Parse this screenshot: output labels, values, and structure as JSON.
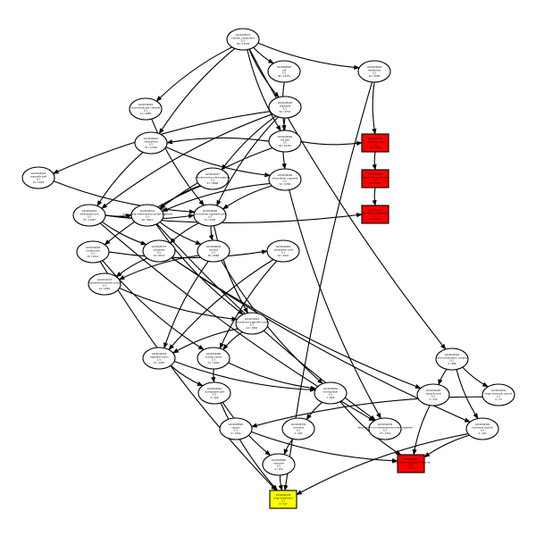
{
  "graph": {
    "nodes": [
      {
        "id": "n1",
        "shape": "ellipse",
        "fill": "#ffffff",
        "lines": [
          "GO:0005575",
          "cellular_component",
          "1/1",
          "56 / 13178"
        ]
      },
      {
        "id": "n2",
        "shape": "ellipse",
        "fill": "#ffffff",
        "lines": [
          "GO:0005623",
          "cell",
          "1/1",
          "56 / 13151"
        ]
      },
      {
        "id": "n3",
        "shape": "ellipse",
        "fill": "#ffffff",
        "lines": [
          "GO:0016020",
          "membrane",
          "1/1",
          "44 / 6093"
        ]
      },
      {
        "id": "n4",
        "shape": "ellipse",
        "fill": "#ffffff",
        "lines": [
          "GO:0032991",
          "macromolecular complex",
          "1/1",
          "14 / 2885"
        ]
      },
      {
        "id": "n5",
        "shape": "ellipse",
        "fill": "#ffffff",
        "lines": [
          "GO:0043226",
          "organelle",
          "1/1",
          "51 / 9733"
        ]
      },
      {
        "id": "n6",
        "shape": "ellipse",
        "fill": "#ffffff",
        "lines": [
          "GO:0005622",
          "intracellular",
          "1/1",
          "53 / 11302"
        ]
      },
      {
        "id": "n7",
        "shape": "ellipse",
        "fill": "#ffffff",
        "lines": [
          "GO:0044464",
          "cell part",
          "1/1",
          "56 / 13151"
        ]
      },
      {
        "id": "n8",
        "shape": "rect",
        "fill": "#ff0000",
        "lines": [
          "GO:0044425",
          "membrane part",
          "1/1",
          "35 / 4563"
        ]
      },
      {
        "id": "n9",
        "shape": "ellipse",
        "fill": "#ffffff",
        "lines": [
          "GO:0043229",
          "intracellular organelle",
          "1/1",
          "51 / 9709"
        ]
      },
      {
        "id": "n10",
        "shape": "ellipse",
        "fill": "#ffffff",
        "lines": [
          "GO:0044422",
          "organelle part",
          "1/1",
          "31 / 5493"
        ]
      },
      {
        "id": "n11",
        "shape": "ellipse",
        "fill": "#ffffff",
        "lines": [
          "GO:0043227",
          "membrane-bounded organelle",
          "1/1",
          "47 / 8848"
        ]
      },
      {
        "id": "n12",
        "shape": "ellipse",
        "fill": "#ffffff",
        "lines": [
          "GO:0044424",
          "intracellular part",
          "1/1",
          "53 / 11087"
        ]
      },
      {
        "id": "n13",
        "shape": "rect",
        "fill": "#ff0000",
        "lines": [
          "GO:0016021",
          "integral to membrane",
          "1/1",
          "34 / 3850"
        ]
      },
      {
        "id": "n14",
        "shape": "rect",
        "fill": "#ff0000",
        "lines": [
          "GO:0031224",
          "intrinsic to membrane",
          "1/1",
          "34 / 3950"
        ]
      },
      {
        "id": "n15",
        "shape": "ellipse",
        "fill": "#ffffff",
        "lines": [
          "GO:0043231",
          "intracellular membrane-bounded organelle",
          "1/1",
          "46 / 8811"
        ]
      },
      {
        "id": "n16",
        "shape": "ellipse",
        "fill": "#ffffff",
        "lines": [
          "GO:0044446",
          "intracellular organelle part",
          "1/1",
          "31 / 5405"
        ]
      },
      {
        "id": "n17",
        "shape": "ellipse",
        "fill": "#ffffff",
        "lines": [
          "GO:0044428",
          "nuclear part",
          "1/1",
          "19 / 2212"
        ]
      },
      {
        "id": "n18",
        "shape": "ellipse",
        "fill": "#ffffff",
        "lines": [
          "GO:0005737",
          "cytoplasm",
          "1/1",
          "34 / 6513"
        ]
      },
      {
        "id": "n19",
        "shape": "ellipse",
        "fill": "#ffffff",
        "lines": [
          "GO:0005634",
          "nucleus",
          "1/1",
          "30 / 4969"
        ]
      },
      {
        "id": "n20",
        "shape": "ellipse",
        "fill": "#ffffff",
        "lines": [
          "GO:0044444",
          "cytoplasmic part",
          "1/1",
          "19 / 4022"
        ]
      },
      {
        "id": "n21",
        "shape": "ellipse",
        "fill": "#ffffff",
        "lines": [
          "GO:0031974",
          "membrane-enclosed lumen",
          "1/1",
          "14 / 1881"
        ]
      },
      {
        "id": "n22",
        "shape": "ellipse",
        "fill": "#ffffff",
        "lines": [
          "GO:0070013",
          "intracellular organelle lumen",
          "1/1",
          "14 / 1863"
        ]
      },
      {
        "id": "n23",
        "shape": "ellipse",
        "fill": "#ffffff",
        "lines": [
          "GO:0043233",
          "organelle lumen",
          "1/1",
          "14 / 1863"
        ]
      },
      {
        "id": "n24",
        "shape": "ellipse",
        "fill": "#ffffff",
        "lines": [
          "GO:0031981",
          "nuclear lumen",
          "1/1",
          "13 / 1643"
        ]
      },
      {
        "id": "n25",
        "shape": "ellipse",
        "fill": "#ffffff",
        "lines": [
          "GO:0044451",
          "nucleoplasm part",
          "1/1",
          "6 / 469"
        ]
      },
      {
        "id": "n26",
        "shape": "ellipse",
        "fill": "#ffffff",
        "lines": [
          "GO:0005654",
          "nucleoplasm",
          "1/1",
          "7 / 806"
        ]
      },
      {
        "id": "n27",
        "shape": "ellipse",
        "fill": "#ffffff",
        "lines": [
          "GO:0005730",
          "nucleolus",
          "1/1",
          "2 / 402"
        ]
      },
      {
        "id": "n28",
        "shape": "ellipse",
        "fill": "#ffffff",
        "lines": [
          "GO:0005840",
          "ribosome",
          "1/1",
          "2 / 194"
        ]
      },
      {
        "id": "n29",
        "shape": "ellipse",
        "fill": "#ffffff",
        "lines": [
          "GO:0030529",
          "ribonucleoprotein complex",
          "1/1",
          "3 / 686"
        ]
      },
      {
        "id": "n30",
        "shape": "rect",
        "fill": "#ff0000",
        "lines": [
          "GO:0022625",
          "cytosolic large ribosomal subunit",
          "1/1",
          "2 / 60"
        ]
      },
      {
        "id": "n31",
        "shape": "ellipse",
        "fill": "#ffffff",
        "lines": [
          "GO:0044445",
          "cytosolic part",
          "1/1",
          "2 / 153"
        ]
      },
      {
        "id": "n32",
        "shape": "ellipse",
        "fill": "#ffffff",
        "lines": [
          "GO:0015934",
          "large ribosomal subunit",
          "1/1",
          "2 / 73"
        ]
      },
      {
        "id": "n33",
        "shape": "ellipse",
        "fill": "#ffffff",
        "lines": [
          "GO:0044391",
          "ribosomal subunit",
          "1/1",
          "2 / 101"
        ]
      },
      {
        "id": "n34",
        "shape": "ellipse",
        "fill": "#ffffff",
        "lines": [
          "GO:0043232",
          "intracellular non-membrane-bounded organelle",
          "1/1",
          "13 / 2710"
        ]
      },
      {
        "id": "n35",
        "shape": "ellipse",
        "fill": "#ffffff",
        "lines": [
          "GO:0005829",
          "cytosol",
          "1/1",
          "3 / 1059"
        ]
      },
      {
        "id": "n36",
        "shape": "rect",
        "fill": "#ffff00",
        "lines": [
          "GO:0000139",
          "Golgi membrane",
          "1/1",
          "4 / 317"
        ]
      }
    ],
    "edges": [
      [
        "n1",
        "n2"
      ],
      [
        "n1",
        "n3"
      ],
      [
        "n1",
        "n4"
      ],
      [
        "n1",
        "n5"
      ],
      [
        "n1",
        "n6"
      ],
      [
        "n1",
        "n7"
      ],
      [
        "n1",
        "n29"
      ],
      [
        "n2",
        "n7"
      ],
      [
        "n7",
        "n6"
      ],
      [
        "n7",
        "n8"
      ],
      [
        "n3",
        "n8"
      ],
      [
        "n3",
        "n36"
      ],
      [
        "n8",
        "n13"
      ],
      [
        "n13",
        "n14"
      ],
      [
        "n5",
        "n9"
      ],
      [
        "n5",
        "n10"
      ],
      [
        "n5",
        "n11"
      ],
      [
        "n5",
        "n16"
      ],
      [
        "n5",
        "n12"
      ],
      [
        "n4",
        "n16"
      ],
      [
        "n6",
        "n12"
      ],
      [
        "n6",
        "n9"
      ],
      [
        "n12",
        "n14"
      ],
      [
        "n7",
        "n15"
      ],
      [
        "n9",
        "n15"
      ],
      [
        "n9",
        "n16"
      ],
      [
        "n9",
        "n34"
      ],
      [
        "n10",
        "n16"
      ],
      [
        "n11",
        "n15"
      ],
      [
        "n11",
        "n17"
      ],
      [
        "n12",
        "n18"
      ],
      [
        "n12",
        "n15"
      ],
      [
        "n12",
        "n16"
      ],
      [
        "n12",
        "n34"
      ],
      [
        "n15",
        "n19"
      ],
      [
        "n15",
        "n22"
      ],
      [
        "n15",
        "n34"
      ],
      [
        "n16",
        "n18"
      ],
      [
        "n16",
        "n19"
      ],
      [
        "n16",
        "n22"
      ],
      [
        "n17",
        "n20"
      ],
      [
        "n17",
        "n24"
      ],
      [
        "n17",
        "n36"
      ],
      [
        "n18",
        "n21"
      ],
      [
        "n18",
        "n31"
      ],
      [
        "n18",
        "n33"
      ],
      [
        "n19",
        "n21"
      ],
      [
        "n19",
        "n26"
      ],
      [
        "n19",
        "n23"
      ],
      [
        "n20",
        "n24"
      ],
      [
        "n20",
        "n23"
      ],
      [
        "n21",
        "n22"
      ],
      [
        "n22",
        "n24"
      ],
      [
        "n22",
        "n23"
      ],
      [
        "n24",
        "n25"
      ],
      [
        "n23",
        "n25"
      ],
      [
        "n23",
        "n26"
      ],
      [
        "n24",
        "n26"
      ],
      [
        "n26",
        "n27"
      ],
      [
        "n26",
        "n30"
      ],
      [
        "n27",
        "n28"
      ],
      [
        "n28",
        "n36"
      ],
      [
        "n29",
        "n31"
      ],
      [
        "n29",
        "n32"
      ],
      [
        "n29",
        "n33"
      ],
      [
        "n31",
        "n30"
      ],
      [
        "n32",
        "n35"
      ],
      [
        "n33",
        "n30"
      ],
      [
        "n35",
        "n30"
      ],
      [
        "n33",
        "n36"
      ],
      [
        "n25",
        "n28"
      ],
      [
        "n25",
        "n36"
      ]
    ]
  }
}
